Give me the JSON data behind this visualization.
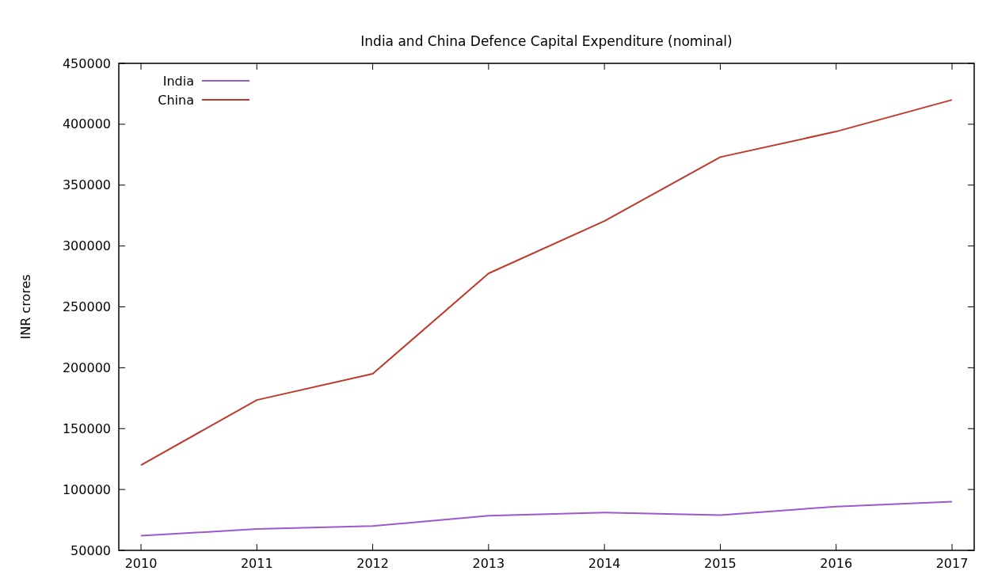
{
  "chart_data": {
    "type": "line",
    "title": "India and China Defence Capital Expenditure (nominal)",
    "ylabel": "INR crores",
    "categories": [
      "2010",
      "2011",
      "2012",
      "2013",
      "2014",
      "2015",
      "2016",
      "2017"
    ],
    "series": [
      {
        "name": "India",
        "color": "#9b59d0",
        "values": [
          62000,
          67500,
          70000,
          78500,
          81000,
          79000,
          86000,
          90000
        ]
      },
      {
        "name": "China",
        "color": "#c0392b",
        "values": [
          120000,
          173500,
          195000,
          277500,
          320500,
          373000,
          394000,
          420000
        ]
      }
    ],
    "ylim": [
      50000,
      450000
    ],
    "yticks": [
      50000,
      100000,
      150000,
      200000,
      250000,
      300000,
      350000,
      400000,
      450000
    ],
    "grid": false,
    "legend": "top left"
  }
}
